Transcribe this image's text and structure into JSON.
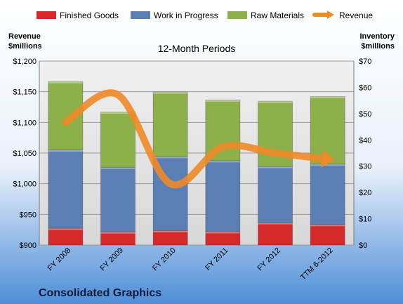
{
  "chart_data": {
    "type": "bar",
    "title": "12-Month Periods",
    "company": "Consolidated Graphics",
    "categories": [
      "FY 2008",
      "FY 2009",
      "FY 2010",
      "FY 2011",
      "FY 2012",
      "TTM 6-2012"
    ],
    "left_axis": {
      "label_line1": "Revenue",
      "label_line2": "$millions",
      "ylim": [
        900,
        1200
      ],
      "ticks": [
        "$900",
        "$950",
        "$1,000",
        "$1,050",
        "$1,100",
        "$1,150",
        "$1,200"
      ],
      "tick_values": [
        900,
        950,
        1000,
        1050,
        1100,
        1150,
        1200
      ]
    },
    "right_axis": {
      "label_line1": "Inventory",
      "label_line2": "$millions",
      "ylim": [
        0,
        70
      ],
      "ticks": [
        "$0",
        "$10",
        "$20",
        "$30",
        "$40",
        "$50",
        "$60",
        "$70"
      ],
      "tick_values": [
        0,
        10,
        20,
        30,
        40,
        50,
        60,
        70
      ]
    },
    "stacked_series_axis": "right",
    "series": [
      {
        "name": "Finished Goods",
        "color": "#d42a2a",
        "values": [
          6.4,
          5.0,
          5.5,
          5.1,
          8.5,
          7.8
        ]
      },
      {
        "name": "Work in Progress",
        "color": "#5b7fb5",
        "values": [
          29.8,
          24.6,
          28.2,
          27.0,
          21.4,
          23.0
        ]
      },
      {
        "name": "Raw Materials",
        "color": "#8db04b",
        "values": [
          26.0,
          21.0,
          24.5,
          23.1,
          24.8,
          25.7
        ]
      }
    ],
    "line_series": {
      "name": "Revenue",
      "axis": "left",
      "color": "#f08a28",
      "values": [
        1100,
        1145,
        1000,
        1060,
        1050,
        1040
      ]
    },
    "grid": true,
    "legend_position": "top"
  }
}
